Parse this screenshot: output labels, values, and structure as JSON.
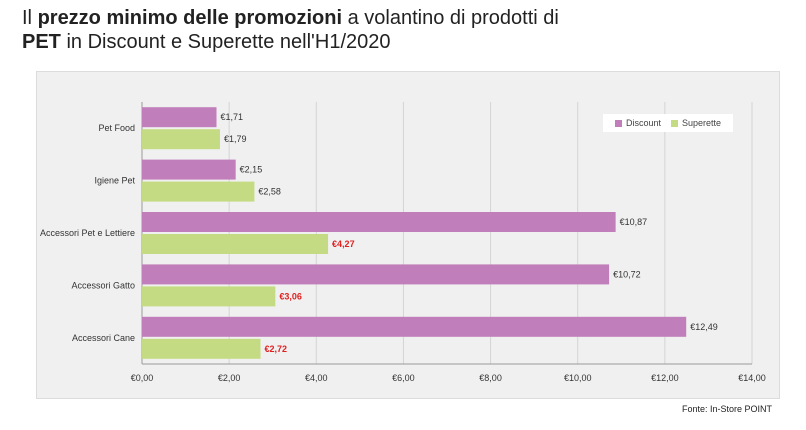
{
  "title": {
    "part1": "Il ",
    "bold1": "prezzo minimo delle promozioni",
    "part2": " a volantino di prodotti di",
    "bold2": "PET",
    "part3": " in Discount e Superette nell'H1/2020"
  },
  "source": "Fonte: In-Store POINT",
  "colors": {
    "discount": "#c07fba",
    "superette": "#c5db83",
    "highlight": "#e02020",
    "grid": "#d4d4d4",
    "text": "#333333"
  },
  "chart_data": {
    "type": "bar",
    "orientation": "horizontal",
    "categories": [
      "Pet Food",
      "Igiene Pet",
      "Accessori Pet e Lettiere",
      "Accessori Gatto",
      "Accessori Cane"
    ],
    "series": [
      {
        "name": "Discount",
        "values": [
          1.71,
          2.15,
          10.87,
          10.72,
          12.49
        ],
        "labels": [
          "€1,71",
          "€2,15",
          "€10,87",
          "€10,72",
          "€12,49"
        ]
      },
      {
        "name": "Superette",
        "values": [
          1.79,
          2.58,
          4.27,
          3.06,
          2.72
        ],
        "labels": [
          "€1,79",
          "€2,58",
          "€4,27",
          "€3,06",
          "€2,72"
        ],
        "highlight": [
          false,
          false,
          true,
          true,
          true
        ]
      }
    ],
    "xlim": [
      0,
      14
    ],
    "xticks": [
      0,
      2,
      4,
      6,
      8,
      10,
      12,
      14
    ],
    "xtick_labels": [
      "€0,00",
      "€2,00",
      "€4,00",
      "€6,00",
      "€8,00",
      "€10,00",
      "€12,00",
      "€14,00"
    ],
    "grid": true,
    "legend": "top-right"
  }
}
